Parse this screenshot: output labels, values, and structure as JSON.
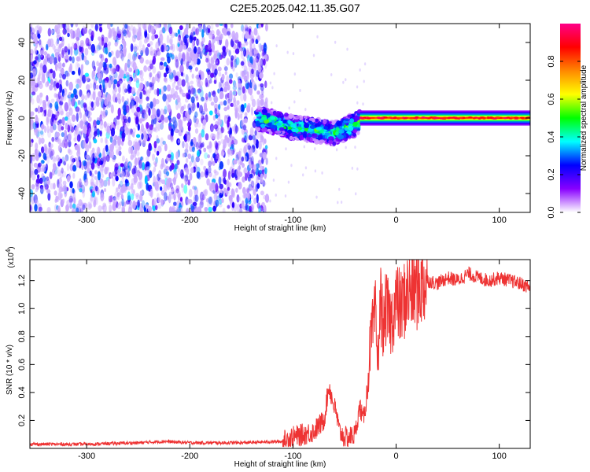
{
  "title": "C2E5.2025.042.11.35.G07",
  "chart_data": [
    {
      "type": "heatmap",
      "xlabel": "Height of straight line (km)",
      "ylabel": "Frequency (Hz)",
      "xlim": [
        -355,
        130
      ],
      "ylim": [
        -50,
        50
      ],
      "xticks": [
        -300,
        -200,
        -100,
        0,
        100
      ],
      "yticks": [
        -40,
        -20,
        0,
        20,
        40
      ],
      "colorbar": {
        "label": "Normalized spectral amplitude",
        "range": [
          0,
          1
        ],
        "ticks": [
          0.0,
          0.2,
          0.4,
          0.6,
          0.8
        ],
        "tick_labels": [
          "0.0",
          "0.2",
          "0.4",
          "0.6",
          "0.8"
        ],
        "colors": [
          "#ffffff",
          "#8800ff",
          "#0000ff",
          "#00ffff",
          "#00ff00",
          "#ffff00",
          "#ff8800",
          "#ff0000",
          "#ff0088"
        ]
      },
      "regions": [
        {
          "description_x_range": [
            -355,
            -125
          ],
          "frequency_range": [
            -50,
            50
          ],
          "amplitude": 0.15
        },
        {
          "description_x_range": [
            -135,
            -35
          ],
          "center_frequency": [
            [
              -135,
              0
            ],
            [
              -100,
              -5
            ],
            [
              -60,
              -8
            ],
            [
              -35,
              -2
            ]
          ],
          "amplitude": 0.45
        },
        {
          "description_x_range": [
            -35,
            130
          ],
          "center_frequency": 0,
          "amplitude": 0.9
        }
      ]
    },
    {
      "type": "line",
      "xlabel": "Height of straight line (km)",
      "ylabel": "SNR (10 * v/v)",
      "multiplier_label": "(x10",
      "multiplier_exponent": "4",
      "xlim": [
        -355,
        130
      ],
      "ylim": [
        0,
        1.35
      ],
      "xticks": [
        -300,
        -200,
        -100,
        0,
        100
      ],
      "yticks": [
        0.2,
        0.4,
        0.6,
        0.8,
        1.0,
        1.2
      ],
      "ytick_labels": [
        "0.2",
        "0.4",
        "0.6",
        "0.8",
        "1.0",
        "1.2"
      ],
      "series": [
        {
          "color": "#ee3333",
          "x": [
            -355,
            -300,
            -250,
            -225,
            -200,
            -150,
            -110,
            -100,
            -80,
            -70,
            -65,
            -62,
            -58,
            -55,
            -50,
            -45,
            -40,
            -35,
            -32,
            -28,
            -25,
            -20,
            -18,
            -15,
            -12,
            -10,
            -5,
            0,
            5,
            10,
            20,
            30,
            40,
            50,
            60,
            70,
            80,
            90,
            100,
            110,
            120,
            130
          ],
          "y": [
            0.03,
            0.03,
            0.04,
            0.05,
            0.04,
            0.04,
            0.05,
            0.08,
            0.12,
            0.2,
            0.45,
            0.35,
            0.25,
            0.12,
            0.08,
            0.08,
            0.1,
            0.3,
            0.2,
            0.4,
            0.75,
            0.95,
            0.6,
            1.05,
            0.85,
            1.0,
            0.9,
            1.05,
            1.0,
            1.1,
            1.15,
            1.2,
            1.18,
            1.22,
            1.2,
            1.25,
            1.22,
            1.2,
            1.22,
            1.2,
            1.18,
            1.15
          ]
        }
      ]
    }
  ]
}
